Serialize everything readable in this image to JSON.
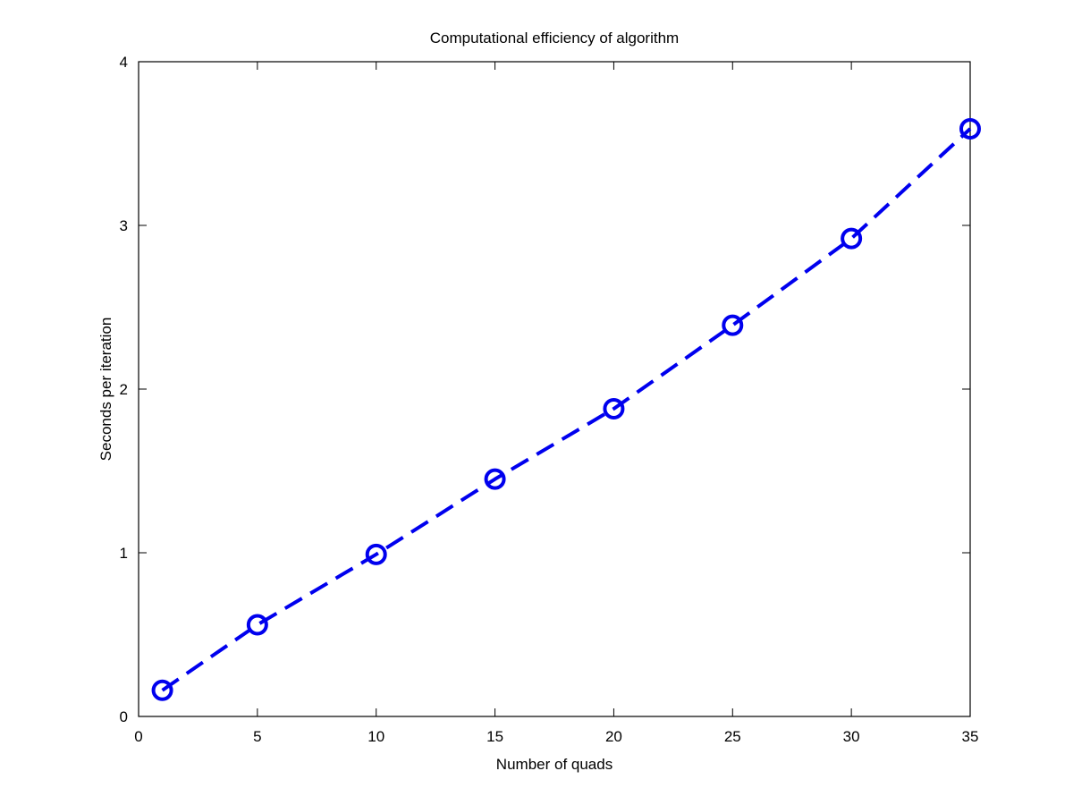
{
  "chart_data": {
    "type": "line",
    "title": "Computational efficiency of algorithm",
    "xlabel": "Number of quads",
    "ylabel": "Seconds per iteration",
    "xlim": [
      0,
      35
    ],
    "ylim": [
      0,
      4
    ],
    "xticks": [
      0,
      5,
      10,
      15,
      20,
      25,
      30,
      35
    ],
    "yticks": [
      0,
      1,
      2,
      3,
      4
    ],
    "grid": false,
    "series": [
      {
        "x": [
          1,
          5,
          10,
          15,
          20,
          25,
          30,
          35
        ],
        "y": [
          0.16,
          0.56,
          0.99,
          1.45,
          1.88,
          2.39,
          2.92,
          3.59
        ],
        "color": "#0000ee",
        "line_style": "dashed",
        "marker": "circle"
      }
    ]
  }
}
